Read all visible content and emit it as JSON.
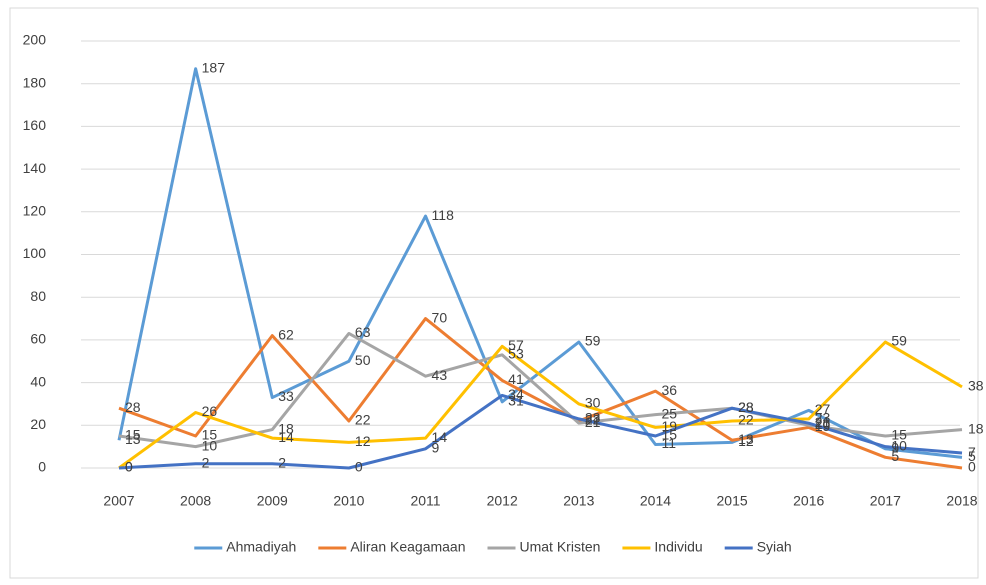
{
  "chart_data": {
    "type": "line",
    "categories": [
      "2007",
      "2008",
      "2009",
      "2010",
      "2011",
      "2012",
      "2013",
      "2014",
      "2015",
      "2016",
      "2017",
      "2018"
    ],
    "series": [
      {
        "name": "Ahmadiyah",
        "color": "#5b9bd5",
        "values": [
          13,
          187,
          33,
          50,
          118,
          31,
          59,
          11,
          12,
          27,
          9,
          5
        ]
      },
      {
        "name": "Aliran Keagamaan",
        "color": "#ed7d31",
        "values": [
          28,
          15,
          62,
          22,
          70,
          41,
          22,
          36,
          13,
          19,
          5,
          0
        ]
      },
      {
        "name": "Umat Kristen",
        "color": "#a5a5a5",
        "values": [
          15,
          10,
          18,
          63,
          43,
          53,
          21,
          25,
          28,
          20,
          15,
          18
        ]
      },
      {
        "name": "Individu",
        "color": "#ffc000",
        "values": [
          0,
          26,
          14,
          12,
          14,
          57,
          30,
          19,
          22,
          23,
          59,
          38
        ]
      },
      {
        "name": "Syiah",
        "color": "#4472c4",
        "values": [
          0,
          2,
          2,
          0,
          9,
          34,
          23,
          15,
          28,
          21,
          10,
          7
        ]
      }
    ],
    "ylim": [
      0,
      200
    ],
    "yticks": [
      0,
      20,
      40,
      60,
      80,
      100,
      120,
      140,
      160,
      180,
      200
    ],
    "grid": true,
    "legend": "bottom"
  }
}
